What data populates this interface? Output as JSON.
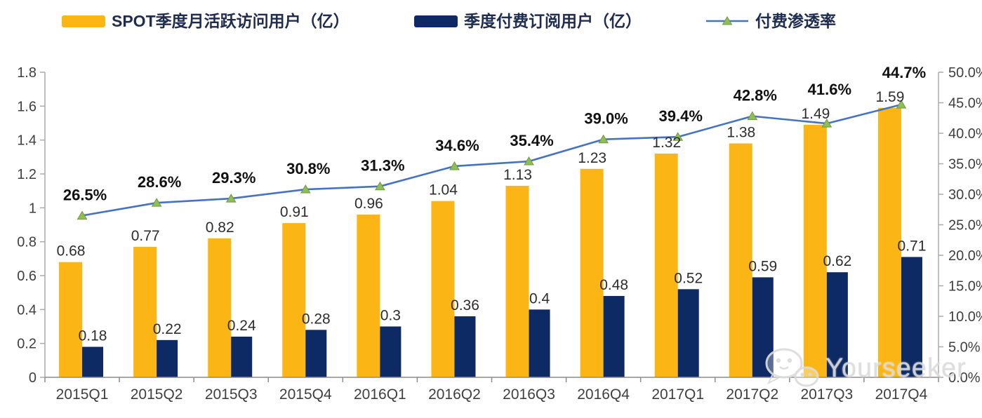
{
  "legend": [
    {
      "label": "SPOT季度月活跃访问用户（亿）",
      "type": "bar",
      "color": "#FBB616"
    },
    {
      "label": "季度付费订阅用户（亿）",
      "type": "bar",
      "color": "#0D2A64"
    },
    {
      "label": "付费渗透率",
      "type": "line",
      "color": "#4472C4",
      "marker_color": "#8FBE56"
    }
  ],
  "chart_data": {
    "type": "bar+line combo",
    "categories": [
      "2015Q1",
      "2015Q2",
      "2015Q3",
      "2015Q4",
      "2016Q1",
      "2016Q2",
      "2016Q3",
      "2016Q4",
      "2017Q1",
      "2017Q2",
      "2017Q3",
      "2017Q4"
    ],
    "series": [
      {
        "name": "SPOT季度月活跃访问用户（亿）",
        "type": "bar",
        "axis": "left",
        "color": "#FBB616",
        "values": [
          0.68,
          0.77,
          0.82,
          0.91,
          0.96,
          1.04,
          1.13,
          1.23,
          1.32,
          1.38,
          1.49,
          1.59
        ],
        "labels": [
          "0.68",
          "0.77",
          "0.82",
          "0.91",
          "0.96",
          "1.04",
          "1.13",
          "1.23",
          "1.32",
          "1.38",
          "1.49",
          "1.59"
        ]
      },
      {
        "name": "季度付费订阅用户（亿）",
        "type": "bar",
        "axis": "left",
        "color": "#0D2A64",
        "values": [
          0.18,
          0.22,
          0.24,
          0.28,
          0.3,
          0.36,
          0.4,
          0.48,
          0.52,
          0.59,
          0.62,
          0.71
        ],
        "labels": [
          "0.18",
          "0.22",
          "0.24",
          "0.28",
          "0.3",
          "0.36",
          "0.4",
          "0.48",
          "0.52",
          "0.59",
          "0.62",
          "0.71"
        ]
      },
      {
        "name": "付费渗透率",
        "type": "line",
        "axis": "right",
        "color": "#4472C4",
        "marker": "triangle",
        "marker_color": "#8FBE56",
        "marker_edge": "#6F9A3D",
        "values": [
          26.5,
          28.6,
          29.3,
          30.8,
          31.3,
          34.6,
          35.4,
          39.0,
          39.4,
          42.8,
          41.6,
          44.7
        ],
        "labels": [
          "26.5%",
          "28.6%",
          "29.3%",
          "30.8%",
          "31.3%",
          "34.6%",
          "35.4%",
          "39.0%",
          "39.4%",
          "42.8%",
          "41.6%",
          "44.7%"
        ]
      }
    ],
    "left_axis": {
      "min": 0,
      "max": 1.8,
      "tick_labels": [
        "0",
        "0.2",
        "0.4",
        "0.6",
        "0.8",
        "1",
        "1.2",
        "1.4",
        "1.6",
        "1.8"
      ]
    },
    "right_axis": {
      "min": 0,
      "max": 50,
      "tick_labels": [
        "0.0%",
        "5.0%",
        "10.0%",
        "15.0%",
        "20.0%",
        "25.0%",
        "30.0%",
        "35.0%",
        "40.0%",
        "45.0%",
        "50.0%"
      ]
    },
    "grid": false,
    "legend_position": "top"
  },
  "watermark": {
    "text": "Yourseeker",
    "icon": "wechat-icon"
  }
}
